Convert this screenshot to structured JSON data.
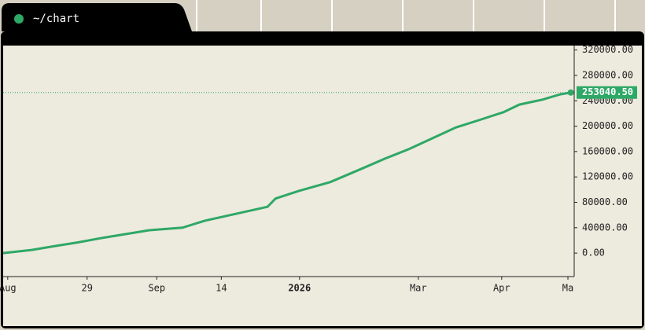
{
  "window": {
    "title": "~/chart"
  },
  "chart_data": {
    "type": "line",
    "x": [
      0,
      5,
      9,
      13.2,
      17.4,
      21.5,
      25.6,
      31.4,
      35.3,
      40.8,
      46.3,
      47.7,
      51.8,
      57.3,
      62.8,
      66.9,
      71.1,
      75.2,
      79.3,
      83.5,
      87.6,
      90.4,
      94.5,
      97.5,
      99.4
    ],
    "values": [
      0,
      5000,
      11000,
      17000,
      24000,
      30000,
      36000,
      40000,
      51000,
      62000,
      73000,
      86000,
      98000,
      112000,
      133000,
      149000,
      164000,
      181000,
      198000,
      210000,
      222000,
      234000,
      242000,
      250000,
      253040.5
    ],
    "color": "#2ea866",
    "xlim": [
      0,
      100
    ],
    "xticks": [
      {
        "value": 0.8,
        "label": "Aug"
      },
      {
        "value": 14.7,
        "label": "29"
      },
      {
        "value": 26.9,
        "label": "Sep"
      },
      {
        "value": 38.2,
        "label": "14"
      },
      {
        "value": 51.9,
        "label": "2026",
        "bold": true
      },
      {
        "value": 72.7,
        "label": "Mar"
      },
      {
        "value": 87.3,
        "label": "Apr"
      },
      {
        "value": 98.9,
        "label": "Ma"
      }
    ],
    "ylim": [
      -37000,
      327000
    ],
    "yticks": [
      {
        "value": 0,
        "label": "0.00"
      },
      {
        "value": 40000,
        "label": "40000.00"
      },
      {
        "value": 80000,
        "label": "80000.00"
      },
      {
        "value": 120000,
        "label": "120000.00"
      },
      {
        "value": 160000,
        "label": "160000.00"
      },
      {
        "value": 200000,
        "label": "200000.00"
      },
      {
        "value": 240000,
        "label": "240000.00"
      },
      {
        "value": 280000,
        "label": "280000.00"
      },
      {
        "value": 320000,
        "label": "320000.00"
      }
    ],
    "price_line": {
      "value": 253040.5,
      "label": "253040.50"
    }
  }
}
